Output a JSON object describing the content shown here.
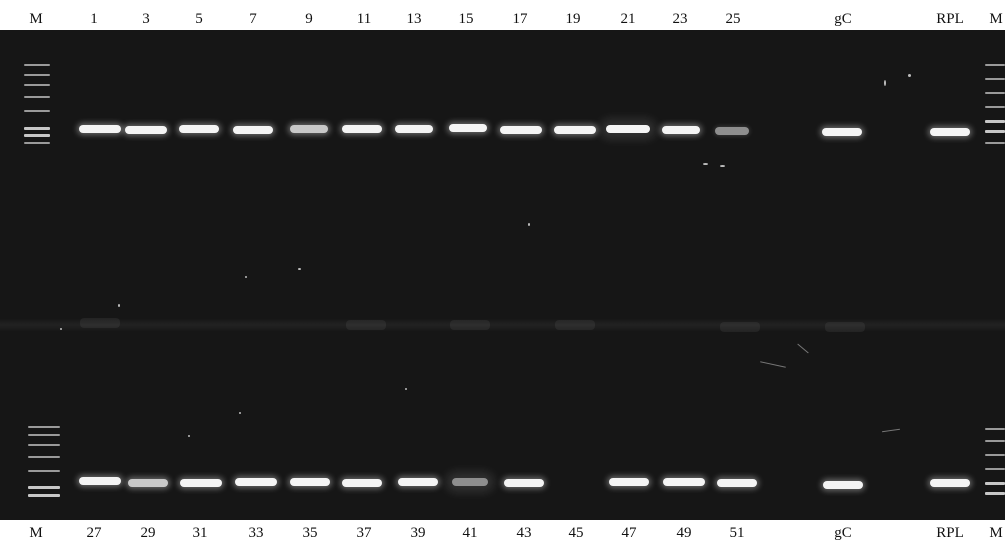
{
  "top_lane_labels": [
    "M",
    "1",
    "3",
    "5",
    "7",
    "9",
    "11",
    "13",
    "15",
    "17",
    "19",
    "21",
    "23",
    "25",
    "gC",
    "RPL",
    "M"
  ],
  "bottom_lane_labels": [
    "M",
    "27",
    "29",
    "31",
    "33",
    "35",
    "37",
    "39",
    "41",
    "43",
    "45",
    "47",
    "49",
    "51",
    "gC",
    "RPL",
    "M"
  ]
}
